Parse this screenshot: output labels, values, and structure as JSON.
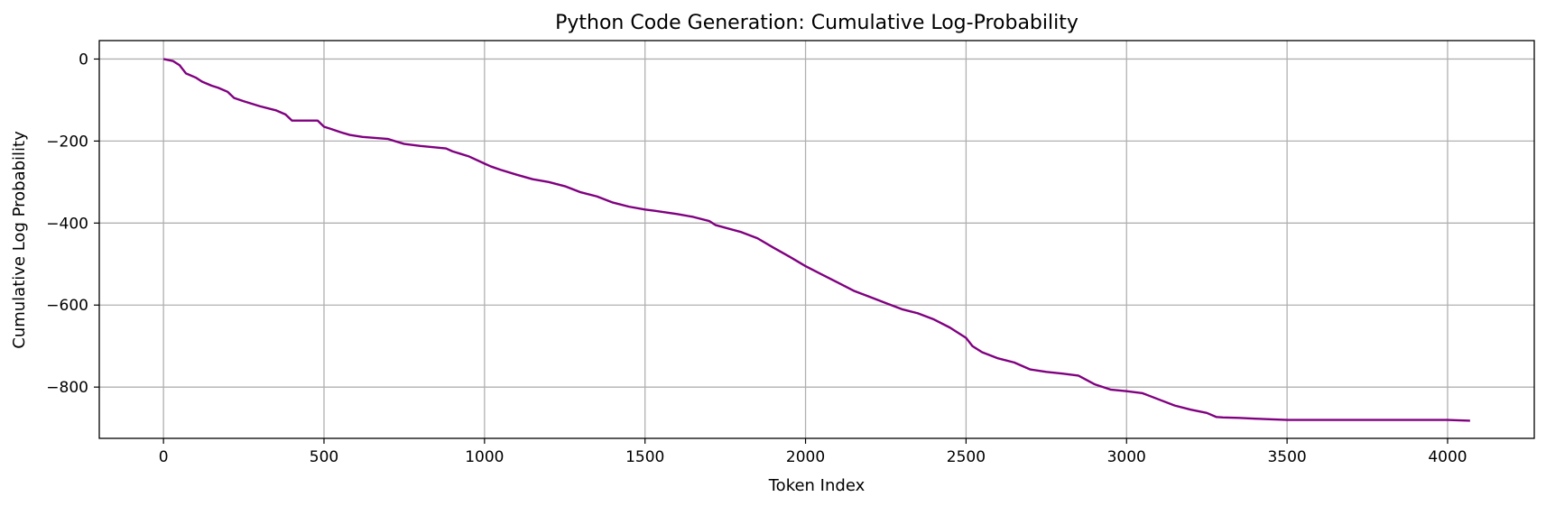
{
  "chart_data": {
    "type": "line",
    "title": "Python Code Generation: Cumulative Log-Probability",
    "xlabel": "Token Index",
    "ylabel": "Cumulative Log Probability",
    "xlim": [
      -200,
      4270
    ],
    "ylim": [
      -925,
      45
    ],
    "xticks": [
      0,
      500,
      1000,
      1500,
      2000,
      2500,
      3000,
      3500,
      4000
    ],
    "xtick_labels": [
      "0",
      "500",
      "1000",
      "1500",
      "2000",
      "2500",
      "3000",
      "3500",
      "4000"
    ],
    "yticks": [
      0,
      -200,
      -400,
      -600,
      -800
    ],
    "ytick_labels": [
      "0",
      "−200",
      "−400",
      "−600",
      "−800"
    ],
    "grid": true,
    "series": [
      {
        "color": "#800080",
        "x": [
          0,
          30,
          50,
          60,
          70,
          100,
          120,
          150,
          170,
          200,
          220,
          250,
          300,
          350,
          380,
          400,
          480,
          500,
          520,
          550,
          580,
          620,
          700,
          720,
          750,
          800,
          880,
          900,
          950,
          1000,
          1020,
          1050,
          1100,
          1150,
          1200,
          1250,
          1300,
          1350,
          1400,
          1450,
          1500,
          1530,
          1600,
          1650,
          1700,
          1720,
          1800,
          1850,
          1900,
          1950,
          2000,
          2050,
          2100,
          2150,
          2200,
          2250,
          2300,
          2350,
          2400,
          2450,
          2500,
          2520,
          2550,
          2600,
          2650,
          2700,
          2750,
          2800,
          2850,
          2900,
          2950,
          3000,
          3050,
          3100,
          3150,
          3200,
          3250,
          3280,
          3300,
          3350,
          3400,
          3500,
          3600,
          3700,
          3800,
          3900,
          4000,
          4070
        ],
        "y": [
          0,
          -5,
          -15,
          -25,
          -35,
          -45,
          -55,
          -65,
          -70,
          -80,
          -95,
          -103,
          -115,
          -125,
          -135,
          -150,
          -150,
          -165,
          -170,
          -178,
          -185,
          -190,
          -195,
          -200,
          -207,
          -212,
          -218,
          -225,
          -237,
          -255,
          -262,
          -270,
          -282,
          -293,
          -300,
          -310,
          -325,
          -335,
          -350,
          -360,
          -367,
          -370,
          -378,
          -385,
          -395,
          -405,
          -422,
          -437,
          -460,
          -482,
          -505,
          -525,
          -545,
          -565,
          -580,
          -595,
          -610,
          -620,
          -635,
          -655,
          -680,
          -700,
          -715,
          -730,
          -740,
          -757,
          -763,
          -767,
          -772,
          -793,
          -806,
          -810,
          -815,
          -830,
          -845,
          -855,
          -863,
          -873,
          -874,
          -875,
          -877,
          -880,
          -880,
          -880,
          -880,
          -880,
          -880,
          -882
        ]
      }
    ]
  }
}
